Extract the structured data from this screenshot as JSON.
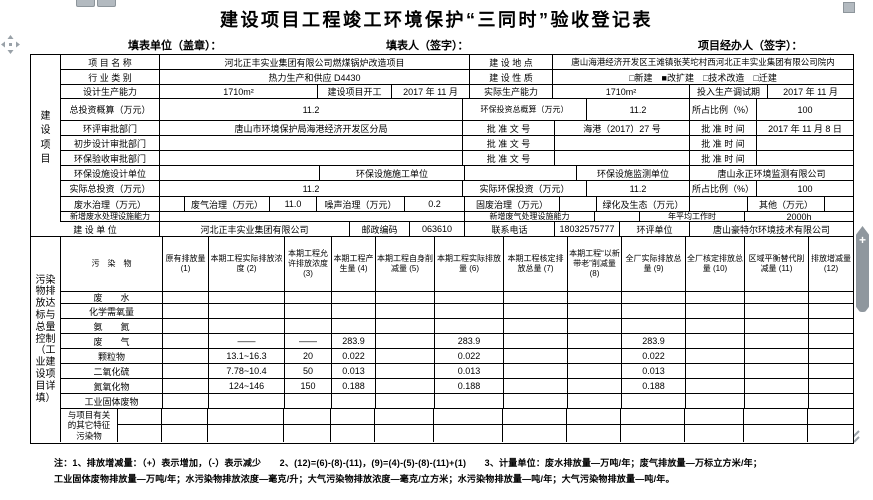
{
  "title": "建设项目工程竣工环境保护“三同时”验收登记表",
  "topbar": {
    "unit": "填表单位（盖章）：",
    "person": "填表人（签字）：",
    "agent": "项目经办人（签字）："
  },
  "s1": {
    "sidebar": "建设项目",
    "r1": {
      "l1": "项 目 名 称",
      "v1": "河北正丰实业集团有限公司燃煤锅炉改造项目",
      "l2": "建 设 地 点",
      "v2": "唐山海港经济开发区王滩镇张芙坨村西河北正丰实业集团有限公司院内"
    },
    "r2": {
      "l1": "行 业 类 别",
      "v1": "热力生产和供应 D4430",
      "l2": "建 设 性 质",
      "v2": "□新建　■改扩建　□技术改造　□迁建"
    },
    "r3": {
      "l1": "设计生产能力",
      "v1": "1710m²",
      "l2": "建设项目开工",
      "v2": "2017 年 11 月",
      "l3": "实际生产能力",
      "v3": "1710m²",
      "l4": "投入生产调试期",
      "v4": "2017 年 11 月"
    },
    "r4": {
      "l1": "总投资概算（万元）",
      "v1": "11.2",
      "l2": "环保投资总概算（万元）",
      "v2": "11.2",
      "l3": "所占比例（%）",
      "v3": "100"
    },
    "r5": {
      "l1": "环评审批部门",
      "v1": "唐山市环境保护局海港经济开发区分局",
      "l2": "批 准 文 号",
      "v2": "海港（2017）27 号",
      "l3": "批 准 时 间",
      "v3": "2017 年 11 月 8 日"
    },
    "r6": {
      "l1": "初步设计审批部门",
      "v1": "",
      "l2": "批 准 文 号",
      "v2": "",
      "l3": "批 准 时 间",
      "v3": ""
    },
    "r7": {
      "l1": "环保验收审批部门",
      "v1": "",
      "l2": "批 准 文 号",
      "v2": "",
      "l3": "批 准 时 间",
      "v3": ""
    },
    "r8": {
      "l1": "环保设施设计单位",
      "v1": "",
      "l2": "环保设施施工单位",
      "v2": "",
      "l3": "环保设施监测单位",
      "v3": "唐山永正环境监测有限公司"
    },
    "r9": {
      "l1": "实际总投资（万元）",
      "v1": "11.2",
      "l2": "实际环保投资（万元）",
      "v2": "11.2",
      "l3": "所占比例（%）",
      "v3": "100"
    },
    "r10": {
      "l1": "废水治理（万元）",
      "v1": "",
      "l2": "废气治理（万元）",
      "v2": "11.0",
      "l3": "噪声治理（万元）",
      "v3": "0.2",
      "l4": "固废治理（万元）",
      "v4": "",
      "l5": "绿化及生态（万元）",
      "v5": "",
      "l6": "其他（万元）",
      "v6": ""
    },
    "r11": {
      "l1": "新增废水处理设施能力",
      "v1": "",
      "l2": "新增废气处理设施能力",
      "v2": "",
      "l3": "年平均工作时",
      "v3": "2000h"
    },
    "r12": {
      "l1": "建 设 单 位",
      "v1": "河北正丰实业集团有限公司",
      "l2": "邮政编码",
      "v2": "063610",
      "l3": "联系电话",
      "v3": "18032575777",
      "l4": "环评单位",
      "v4": "唐山豪特尔环境技术有限公司"
    }
  },
  "pollution": {
    "sidebar": "污染物排放达标与总量控制（工业建设项目详填）",
    "headers": [
      "污　染　物",
      "原有排放量 (1)",
      "本期工程实际排放浓度 (2)",
      "本期工程允许排放浓度 (3)",
      "本期工程产生量 (4)",
      "本期工程自身削减量 (5)",
      "本期工程实际排放量 (6)",
      "本期工程核定排放总量 (7)",
      "本期工程“以新带老”削减量 (8)",
      "全厂实际排放总量 (9)",
      "全厂核定排放总量 (10)",
      "区域平衡替代削减量 (11)",
      "排放增减量 (12)"
    ],
    "rows": [
      {
        "name": "废　　水",
        "cells": [
          "",
          "",
          "",
          "",
          "",
          "",
          "",
          "",
          "",
          "",
          "",
          ""
        ]
      },
      {
        "name": "化学需氧量",
        "cells": [
          "",
          "",
          "",
          "",
          "",
          "",
          "",
          "",
          "",
          "",
          "",
          ""
        ]
      },
      {
        "name": "氨　　氮",
        "cells": [
          "",
          "",
          "",
          "",
          "",
          "",
          "",
          "",
          "",
          "",
          "",
          ""
        ]
      },
      {
        "name": "废　　气",
        "cells": [
          "",
          "——",
          "——",
          "283.9",
          "",
          "283.9",
          "",
          "",
          "283.9",
          "",
          "",
          ""
        ]
      },
      {
        "name": "颗粒物",
        "cells": [
          "",
          "13.1~16.3",
          "20",
          "0.022",
          "",
          "0.022",
          "",
          "",
          "0.022",
          "",
          "",
          ""
        ]
      },
      {
        "name": "二氧化硫",
        "cells": [
          "",
          "7.78~10.4",
          "50",
          "0.013",
          "",
          "0.013",
          "",
          "",
          "0.013",
          "",
          "",
          ""
        ]
      },
      {
        "name": "氮氧化物",
        "cells": [
          "",
          "124~146",
          "150",
          "0.188",
          "",
          "0.188",
          "",
          "",
          "0.188",
          "",
          "",
          ""
        ]
      },
      {
        "name": "工业固体废物",
        "cells": [
          "",
          "",
          "",
          "",
          "",
          "",
          "",
          "",
          "",
          "",
          "",
          ""
        ]
      }
    ],
    "other_label": "与项目有关的其它特征污染物"
  },
  "note1": "注：1、排放增减量：（+）表示增加，（-）表示减少　　2、(12)=(6)-(8)-(11)，(9)=(4)-(5)-(8)-(11)+(1)　　3、计量单位：废水排放量—万吨/年；废气排放量—万标立方米/年；",
  "note2": "工业固体废物排放量—万吨/年；水污染物排放浓度—毫克/升；大气污染物排放浓度—毫克/立方米；水污染物排放量—吨/年；大气污染物排放量—吨/年。",
  "ui": {
    "plus": "+"
  }
}
